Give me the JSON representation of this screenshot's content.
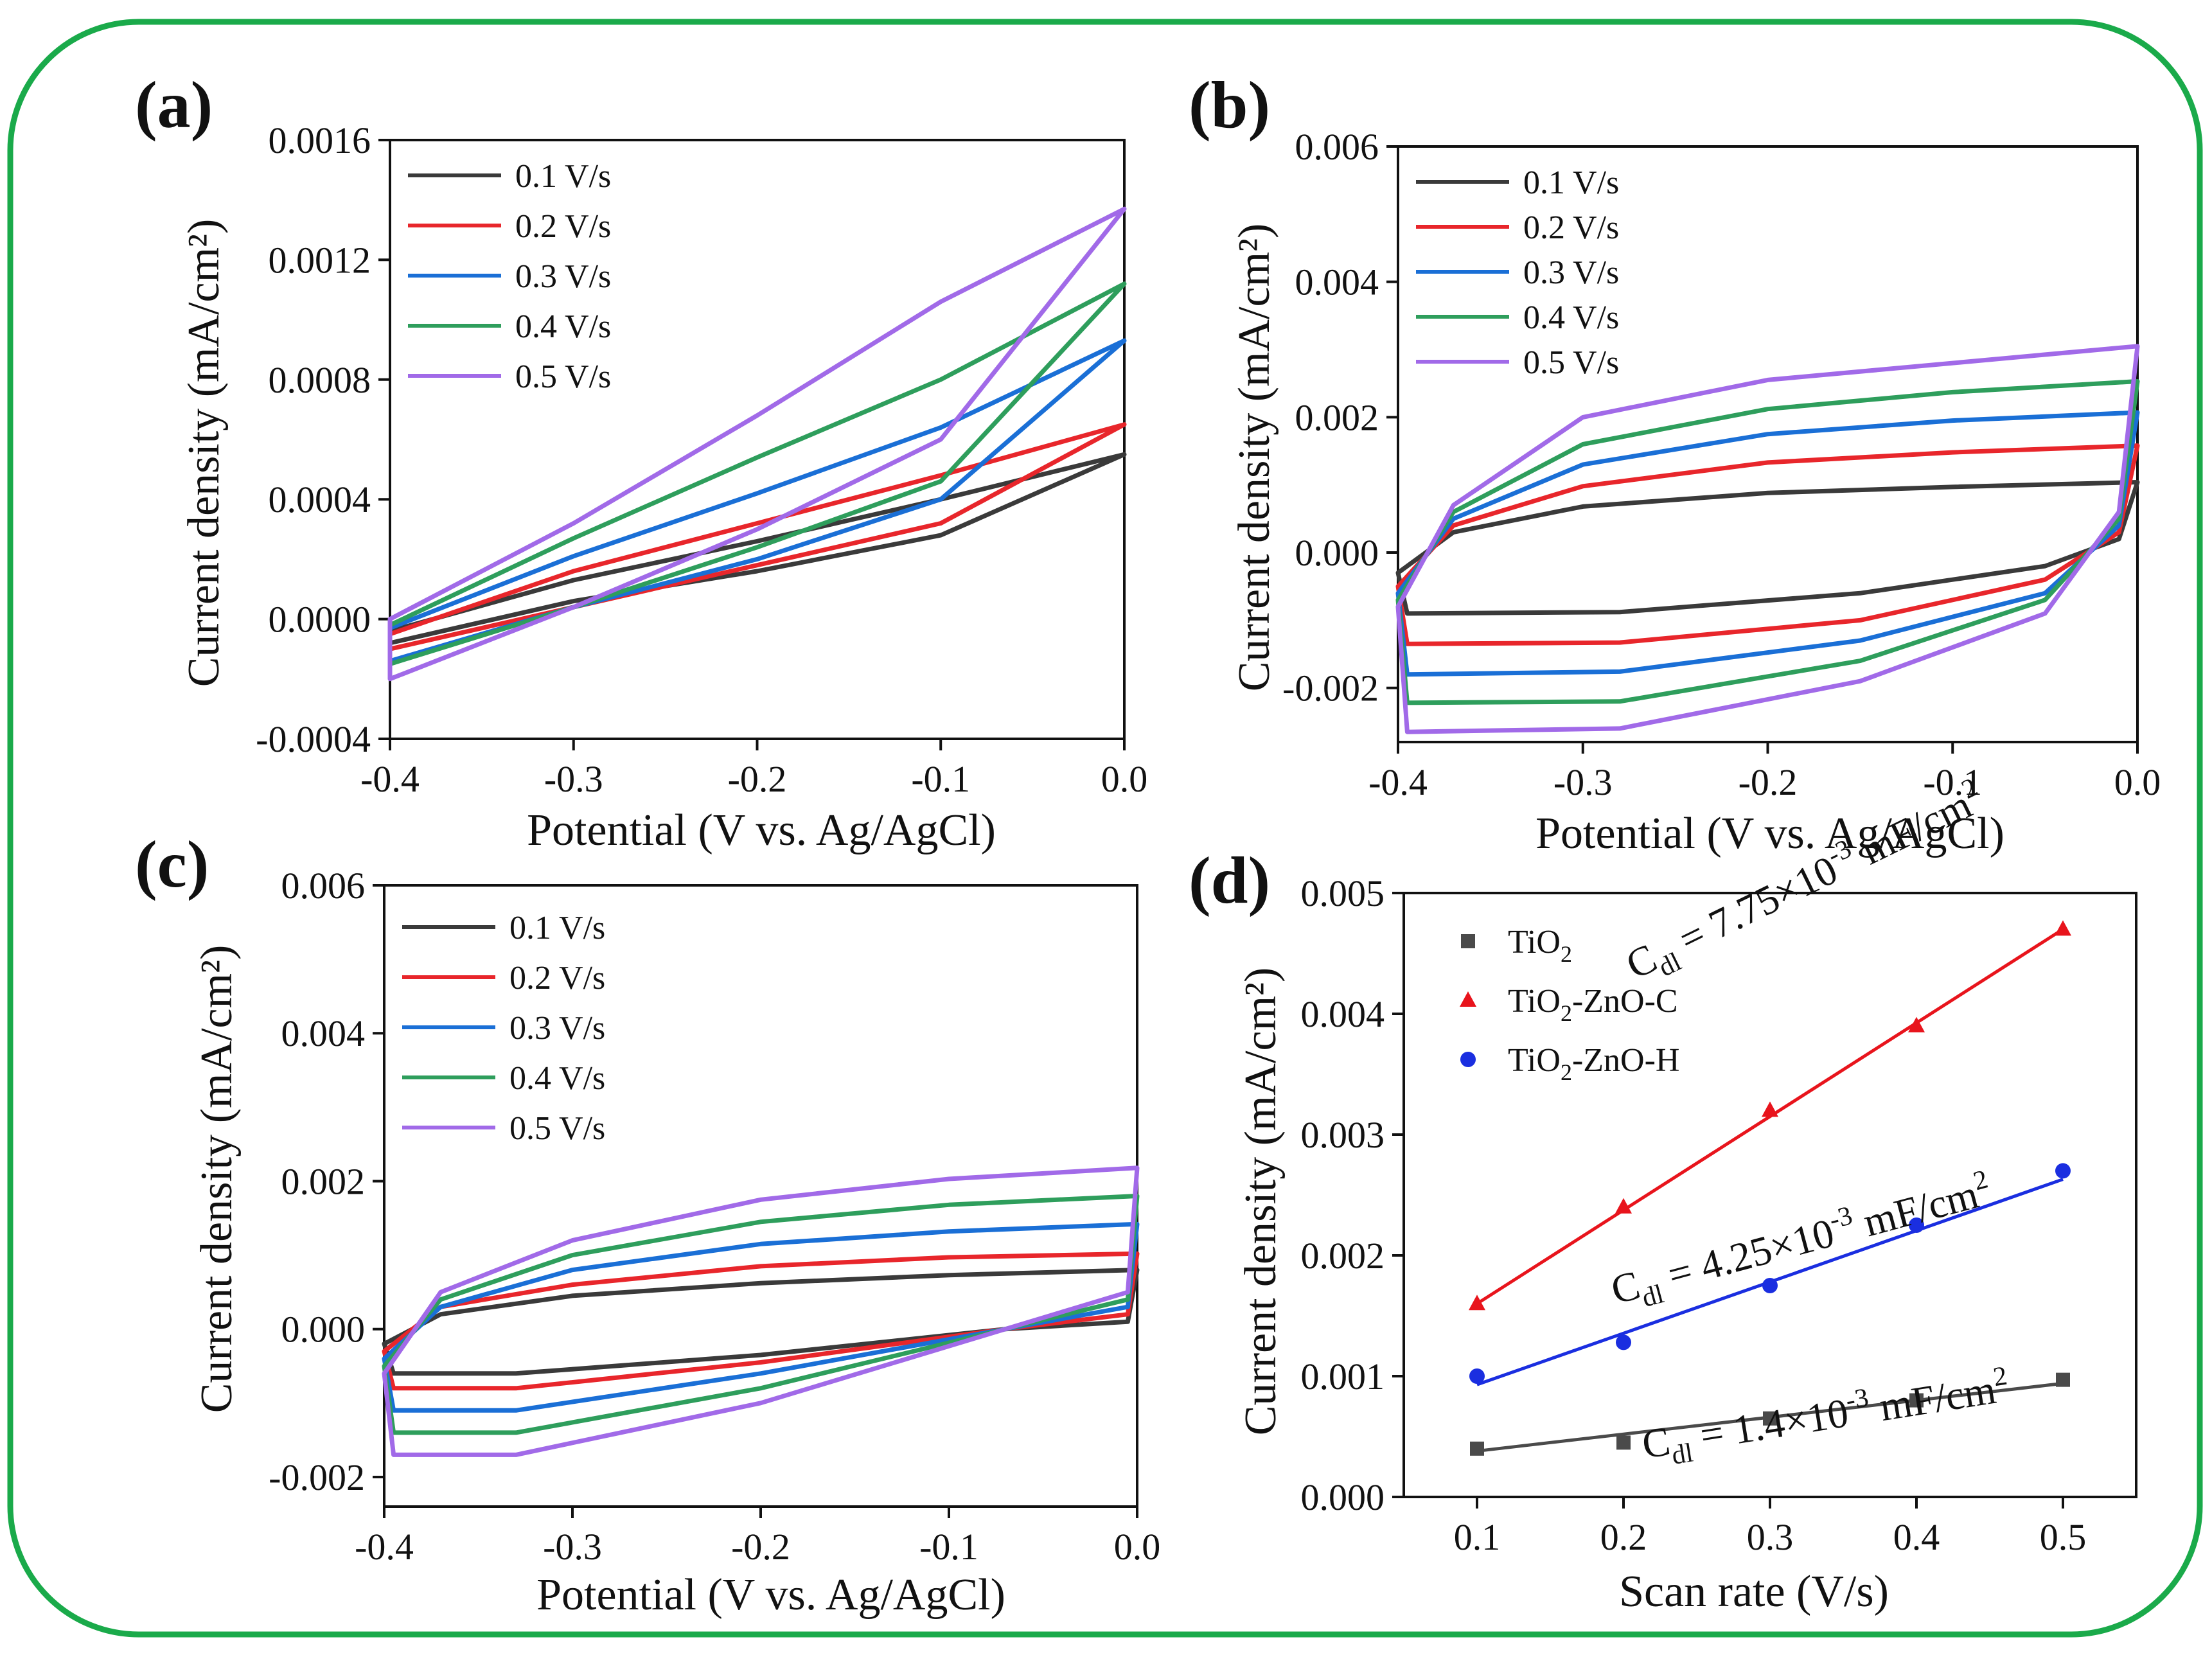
{
  "chart_data": [
    {
      "panel": "(a)",
      "type": "line",
      "xlabel": "Potential (V vs. Ag/AgCl)",
      "ylabel": "Current density (mA/cm²)",
      "xlim": [
        -0.4,
        0.0
      ],
      "ylim": [
        -0.0004,
        0.0016
      ],
      "xticks": [
        -0.4,
        -0.3,
        -0.2,
        -0.1,
        0.0
      ],
      "xtick_labels": [
        "-0.4",
        "-0.3",
        "-0.2",
        "-0.1",
        "0.0"
      ],
      "yticks": [
        -0.0004,
        0,
        0.0004,
        0.0008,
        0.0012,
        0.0016
      ],
      "ytick_labels": [
        "-0.0004",
        "0.0000",
        "0.0004",
        "0.0008",
        "0.0012",
        "0.0016"
      ],
      "legend_position": "top-left",
      "series": [
        {
          "name": "0.1 V/s",
          "color": "#3a3a3a",
          "cv_points": [
            [
              -0.4,
              -8e-05
            ],
            [
              -0.3,
              6e-05
            ],
            [
              -0.2,
              0.00016
            ],
            [
              -0.1,
              0.00028
            ],
            [
              0,
              0.00055
            ],
            [
              -0.1,
              0.0004
            ],
            [
              -0.2,
              0.00026
            ],
            [
              -0.3,
              0.00013
            ],
            [
              -0.4,
              -4e-05
            ]
          ]
        },
        {
          "name": "0.2 V/s",
          "color": "#e8262b",
          "cv_points": [
            [
              -0.4,
              -0.0001
            ],
            [
              -0.3,
              4e-05
            ],
            [
              -0.2,
              0.00018
            ],
            [
              -0.1,
              0.00032
            ],
            [
              0,
              0.00065
            ],
            [
              -0.1,
              0.00048
            ],
            [
              -0.2,
              0.00032
            ],
            [
              -0.3,
              0.00016
            ],
            [
              -0.4,
              -5e-05
            ]
          ]
        },
        {
          "name": "0.3 V/s",
          "color": "#1a6fd6",
          "cv_points": [
            [
              -0.4,
              -0.00014
            ],
            [
              -0.3,
              4e-05
            ],
            [
              -0.2,
              0.0002
            ],
            [
              -0.1,
              0.0004
            ],
            [
              0,
              0.00093
            ],
            [
              -0.1,
              0.00064
            ],
            [
              -0.2,
              0.00042
            ],
            [
              -0.3,
              0.00021
            ],
            [
              -0.4,
              -3e-05
            ]
          ]
        },
        {
          "name": "0.4 V/s",
          "color": "#2e9e5c",
          "cv_points": [
            [
              -0.4,
              -0.00015
            ],
            [
              -0.3,
              4e-05
            ],
            [
              -0.2,
              0.00024
            ],
            [
              -0.1,
              0.00046
            ],
            [
              0,
              0.00112
            ],
            [
              -0.1,
              0.0008
            ],
            [
              -0.2,
              0.00054
            ],
            [
              -0.3,
              0.00027
            ],
            [
              -0.4,
              -2e-05
            ]
          ]
        },
        {
          "name": "0.5 V/s",
          "color": "#a16ae8",
          "cv_points": [
            [
              -0.4,
              -0.0002
            ],
            [
              -0.3,
              4e-05
            ],
            [
              -0.2,
              0.0003
            ],
            [
              -0.1,
              0.0006
            ],
            [
              0,
              0.00137
            ],
            [
              -0.1,
              0.00106
            ],
            [
              -0.2,
              0.00068
            ],
            [
              -0.3,
              0.00032
            ],
            [
              -0.4,
              0.0
            ]
          ]
        }
      ]
    },
    {
      "panel": "(b)",
      "type": "line",
      "xlabel": "Potential (V vs. Ag/AgCl)",
      "ylabel": "Current density (mA/cm²)",
      "xlim": [
        -0.4,
        0.0
      ],
      "ylim": [
        -0.0028,
        0.006
      ],
      "xticks": [
        -0.4,
        -0.3,
        -0.2,
        -0.1,
        0.0
      ],
      "xtick_labels": [
        "-0.4",
        "-0.3",
        "-0.2",
        "-0.1",
        "0.0"
      ],
      "yticks": [
        -0.002,
        0,
        0.002,
        0.004,
        0.006
      ],
      "ytick_labels": [
        "-0.002",
        "0.000",
        "0.002",
        "0.004",
        "0.006"
      ],
      "legend_position": "top-left",
      "series": [
        {
          "name": "0.1 V/s",
          "color": "#3a3a3a",
          "cv_points": [
            [
              -0.4,
              -0.0003
            ],
            [
              -0.37,
              0.0003
            ],
            [
              -0.3,
              0.00068
            ],
            [
              -0.2,
              0.00088
            ],
            [
              -0.1,
              0.00097
            ],
            [
              0,
              0.00104
            ],
            [
              -0.01,
              0.0002
            ],
            [
              -0.05,
              -0.0002
            ],
            [
              -0.15,
              -0.0006
            ],
            [
              -0.28,
              -0.00088
            ],
            [
              -0.395,
              -0.0009
            ],
            [
              -0.4,
              -0.0003
            ]
          ]
        },
        {
          "name": "0.2 V/s",
          "color": "#e8262b",
          "cv_points": [
            [
              -0.4,
              -0.0005
            ],
            [
              -0.37,
              0.0004
            ],
            [
              -0.3,
              0.00098
            ],
            [
              -0.2,
              0.00133
            ],
            [
              -0.1,
              0.00148
            ],
            [
              0,
              0.00158
            ],
            [
              -0.01,
              0.0003
            ],
            [
              -0.05,
              -0.0004
            ],
            [
              -0.15,
              -0.001
            ],
            [
              -0.28,
              -0.00133
            ],
            [
              -0.395,
              -0.00135
            ],
            [
              -0.4,
              -0.0005
            ]
          ]
        },
        {
          "name": "0.3 V/s",
          "color": "#1a6fd6",
          "cv_points": [
            [
              -0.4,
              -0.0006
            ],
            [
              -0.37,
              0.0005
            ],
            [
              -0.3,
              0.0013
            ],
            [
              -0.2,
              0.00175
            ],
            [
              -0.1,
              0.00195
            ],
            [
              0,
              0.00207
            ],
            [
              -0.01,
              0.0004
            ],
            [
              -0.05,
              -0.0006
            ],
            [
              -0.15,
              -0.0013
            ],
            [
              -0.28,
              -0.00176
            ],
            [
              -0.395,
              -0.0018
            ],
            [
              -0.4,
              -0.0006
            ]
          ]
        },
        {
          "name": "0.4 V/s",
          "color": "#2e9e5c",
          "cv_points": [
            [
              -0.4,
              -0.0007
            ],
            [
              -0.37,
              0.0006
            ],
            [
              -0.3,
              0.0016
            ],
            [
              -0.2,
              0.00212
            ],
            [
              -0.1,
              0.00237
            ],
            [
              0,
              0.00253
            ],
            [
              -0.01,
              0.0005
            ],
            [
              -0.05,
              -0.0007
            ],
            [
              -0.15,
              -0.0016
            ],
            [
              -0.28,
              -0.0022
            ],
            [
              -0.395,
              -0.00222
            ],
            [
              -0.4,
              -0.0007
            ]
          ]
        },
        {
          "name": "0.5 V/s",
          "color": "#a16ae8",
          "cv_points": [
            [
              -0.4,
              -0.0008
            ],
            [
              -0.37,
              0.0007
            ],
            [
              -0.3,
              0.002
            ],
            [
              -0.2,
              0.00255
            ],
            [
              -0.1,
              0.0028
            ],
            [
              0,
              0.00305
            ],
            [
              -0.01,
              0.0006
            ],
            [
              -0.05,
              -0.0009
            ],
            [
              -0.15,
              -0.0019
            ],
            [
              -0.28,
              -0.0026
            ],
            [
              -0.395,
              -0.00265
            ],
            [
              -0.4,
              -0.0008
            ]
          ]
        }
      ]
    },
    {
      "panel": "(c)",
      "type": "line",
      "xlabel": "Potential (V vs. Ag/AgCl)",
      "ylabel": "Current density (mA/cm²)",
      "xlim": [
        -0.4,
        0.0
      ],
      "ylim": [
        -0.0024,
        0.006
      ],
      "xticks": [
        -0.4,
        -0.3,
        -0.2,
        -0.1,
        0.0
      ],
      "xtick_labels": [
        "-0.4",
        "-0.3",
        "-0.2",
        "-0.1",
        "0.0"
      ],
      "yticks": [
        -0.002,
        0,
        0.002,
        0.004,
        0.006
      ],
      "ytick_labels": [
        "-0.002",
        "0.000",
        "0.002",
        "0.004",
        "0.006"
      ],
      "legend_position": "top-left",
      "series": [
        {
          "name": "0.1 V/s",
          "color": "#3a3a3a",
          "cv_points": [
            [
              -0.4,
              -0.0002
            ],
            [
              -0.37,
              0.0002
            ],
            [
              -0.3,
              0.00045
            ],
            [
              -0.2,
              0.00062
            ],
            [
              -0.1,
              0.00073
            ],
            [
              0,
              0.0008
            ],
            [
              -0.005,
              0.0001
            ],
            [
              -0.07,
              -0.0
            ],
            [
              -0.2,
              -0.00035
            ],
            [
              -0.33,
              -0.0006
            ],
            [
              -0.395,
              -0.0006
            ],
            [
              -0.4,
              -0.0002
            ]
          ]
        },
        {
          "name": "0.2 V/s",
          "color": "#e8262b",
          "cv_points": [
            [
              -0.4,
              -0.0003
            ],
            [
              -0.37,
              0.0003
            ],
            [
              -0.3,
              0.0006
            ],
            [
              -0.2,
              0.00085
            ],
            [
              -0.1,
              0.00097
            ],
            [
              0,
              0.00102
            ],
            [
              -0.005,
              0.0002
            ],
            [
              -0.07,
              -0.0
            ],
            [
              -0.2,
              -0.00045
            ],
            [
              -0.33,
              -0.0008
            ],
            [
              -0.395,
              -0.0008
            ],
            [
              -0.4,
              -0.0003
            ]
          ]
        },
        {
          "name": "0.3 V/s",
          "color": "#1a6fd6",
          "cv_points": [
            [
              -0.4,
              -0.0004
            ],
            [
              -0.37,
              0.0003
            ],
            [
              -0.3,
              0.0008
            ],
            [
              -0.2,
              0.00115
            ],
            [
              -0.1,
              0.00132
            ],
            [
              0,
              0.00142
            ],
            [
              -0.005,
              0.0003
            ],
            [
              -0.07,
              -0.0
            ],
            [
              -0.2,
              -0.0006
            ],
            [
              -0.33,
              -0.0011
            ],
            [
              -0.395,
              -0.0011
            ],
            [
              -0.4,
              -0.0004
            ]
          ]
        },
        {
          "name": "0.4 V/s",
          "color": "#2e9e5c",
          "cv_points": [
            [
              -0.4,
              -0.0005
            ],
            [
              -0.37,
              0.0004
            ],
            [
              -0.3,
              0.001
            ],
            [
              -0.2,
              0.00145
            ],
            [
              -0.1,
              0.00168
            ],
            [
              0,
              0.0018
            ],
            [
              -0.005,
              0.0004
            ],
            [
              -0.07,
              -0.0
            ],
            [
              -0.2,
              -0.0008
            ],
            [
              -0.33,
              -0.0014
            ],
            [
              -0.395,
              -0.0014
            ],
            [
              -0.4,
              -0.0005
            ]
          ]
        },
        {
          "name": "0.5 V/s",
          "color": "#a16ae8",
          "cv_points": [
            [
              -0.4,
              -0.0006
            ],
            [
              -0.37,
              0.0005
            ],
            [
              -0.3,
              0.0012
            ],
            [
              -0.2,
              0.00175
            ],
            [
              -0.1,
              0.00203
            ],
            [
              0,
              0.00218
            ],
            [
              -0.005,
              0.0005
            ],
            [
              -0.07,
              -0.0
            ],
            [
              -0.2,
              -0.001
            ],
            [
              -0.33,
              -0.0017
            ],
            [
              -0.395,
              -0.0017
            ],
            [
              -0.4,
              -0.0006
            ]
          ]
        }
      ]
    },
    {
      "panel": "(d)",
      "type": "scatter",
      "xlabel": "Scan rate (V/s)",
      "ylabel": "Current density (mA/cm²)",
      "xlim": [
        0.05,
        0.55
      ],
      "ylim": [
        0.0,
        0.005
      ],
      "xticks": [
        0.1,
        0.2,
        0.3,
        0.4,
        0.5
      ],
      "xtick_labels": [
        "0.1",
        "0.2",
        "0.3",
        "0.4",
        "0.5"
      ],
      "yticks": [
        0,
        0.001,
        0.002,
        0.003,
        0.004,
        0.005
      ],
      "ytick_labels": [
        "0.000",
        "0.001",
        "0.002",
        "0.003",
        "0.004",
        "0.005"
      ],
      "x": [
        0.1,
        0.2,
        0.3,
        0.4,
        0.5
      ],
      "legend_position": "top-left",
      "series": [
        {
          "name_main": "TiO",
          "name_sub": "2",
          "name_tail": "",
          "marker": "square",
          "color": "#4a4a4a",
          "values": [
            0.0004,
            0.00045,
            0.00065,
            0.0008,
            0.00097
          ],
          "fit": [
            0.00038,
            0.00094
          ],
          "annotation": {
            "lead": "C",
            "sub": "dl",
            "text": " = 1.4×10",
            "exp": "-3",
            "unit": " mF/cm",
            "unit_exp": "2"
          }
        },
        {
          "name_main": "TiO",
          "name_sub": "2",
          "name_tail": "-ZnO-C",
          "marker": "triangle",
          "color": "#e8141c",
          "values": [
            0.0016,
            0.0024,
            0.0032,
            0.0039,
            0.0047
          ],
          "fit": [
            0.0016,
            0.0047
          ],
          "annotation": {
            "lead": "C",
            "sub": "dl",
            "text": " = 7.75×10",
            "exp": "-3",
            "unit": " mF/cm",
            "unit_exp": "2"
          }
        },
        {
          "name_main": "TiO",
          "name_sub": "2",
          "name_tail": "-ZnO-H",
          "marker": "circle",
          "color": "#1a2ee0",
          "values": [
            0.001,
            0.00128,
            0.00175,
            0.00225,
            0.0027
          ],
          "fit": [
            0.00093,
            0.00263
          ],
          "annotation": {
            "lead": "C",
            "sub": "dl",
            "text": " = 4.25×10",
            "exp": "-3",
            "unit": " mF/cm",
            "unit_exp": "2"
          }
        }
      ]
    }
  ],
  "colors": {
    "frame": "#1aaa4a",
    "axis": "#111111"
  }
}
